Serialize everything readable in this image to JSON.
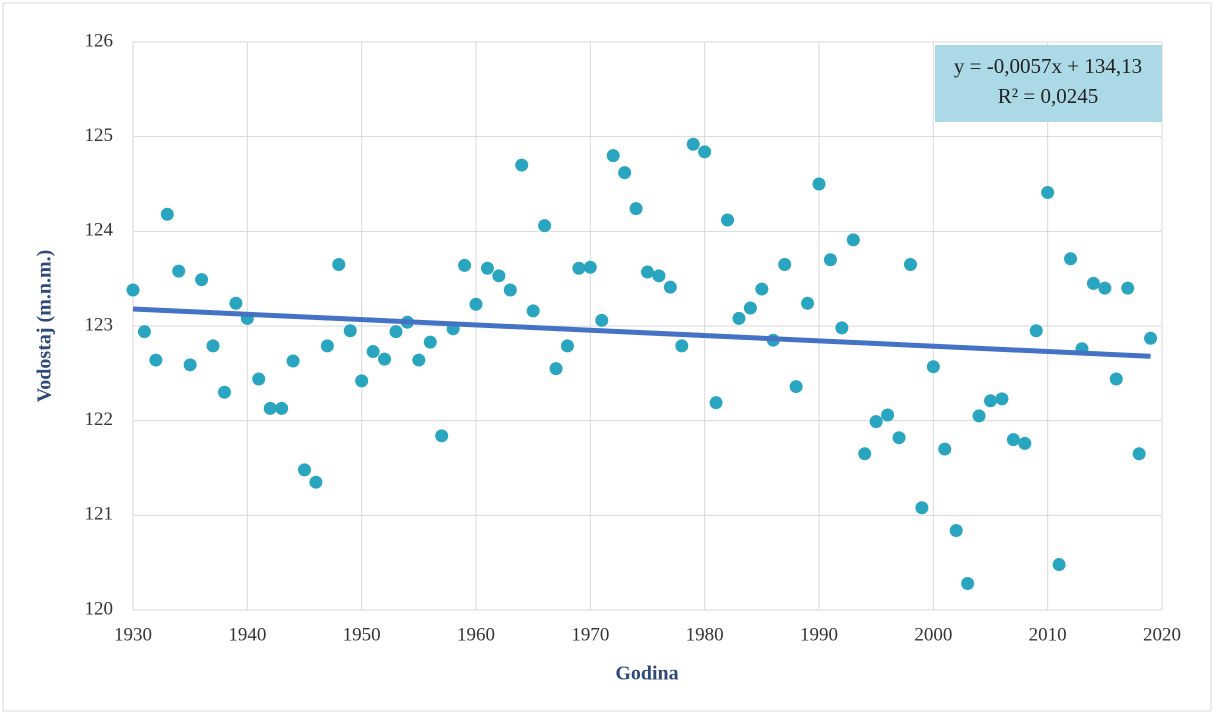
{
  "chart_data": {
    "type": "scatter",
    "x_label": "Godina",
    "y_label": "Vodostaj (m.n.m.)",
    "annotation": [
      "y = -0,0057x + 134,13",
      "R² = 0,0245"
    ],
    "color": "#2aa5c0",
    "grid": true,
    "x": [
      1930,
      1931,
      1932,
      1933,
      1934,
      1935,
      1936,
      1937,
      1938,
      1939,
      1940,
      1941,
      1942,
      1943,
      1944,
      1945,
      1946,
      1947,
      1948,
      1949,
      1950,
      1951,
      1952,
      1953,
      1954,
      1955,
      1956,
      1957,
      1958,
      1959,
      1960,
      1961,
      1962,
      1963,
      1964,
      1965,
      1966,
      1967,
      1968,
      1969,
      1970,
      1971,
      1972,
      1973,
      1974,
      1975,
      1976,
      1977,
      1978,
      1979,
      1980,
      1981,
      1982,
      1983,
      1984,
      1985,
      1986,
      1987,
      1988,
      1989,
      1990,
      1991,
      1992,
      1993,
      1994,
      1995,
      1996,
      1997,
      1998,
      1999,
      2000,
      2001,
      2002,
      2003,
      2004,
      2005,
      2006,
      2007,
      2008,
      2009,
      2010,
      2011,
      2012,
      2013,
      2014,
      2015,
      2016,
      2017,
      2018,
      2019
    ],
    "values": [
      123.38,
      122.94,
      122.64,
      124.18,
      123.58,
      122.59,
      123.49,
      122.79,
      122.3,
      123.24,
      123.08,
      122.44,
      122.13,
      122.13,
      122.63,
      121.48,
      121.35,
      122.79,
      123.65,
      122.95,
      122.42,
      122.73,
      122.65,
      122.94,
      123.04,
      122.64,
      122.83,
      121.84,
      122.97,
      123.64,
      123.23,
      123.61,
      123.53,
      123.38,
      124.7,
      123.16,
      124.06,
      122.55,
      122.79,
      123.61,
      123.62,
      123.06,
      124.8,
      124.62,
      124.24,
      123.57,
      123.53,
      123.41,
      122.79,
      124.92,
      124.84,
      122.19,
      124.12,
      123.08,
      123.19,
      123.39,
      122.85,
      123.65,
      122.36,
      123.24,
      124.5,
      123.7,
      122.98,
      123.91,
      121.65,
      121.99,
      122.06,
      121.82,
      123.65,
      121.08,
      122.57,
      121.7,
      120.84,
      120.28,
      122.05,
      122.21,
      122.23,
      121.8,
      121.76,
      122.95,
      124.41,
      120.48,
      123.71,
      122.76,
      123.45,
      123.4,
      122.44,
      123.4,
      121.65,
      122.87
    ],
    "trendline": {
      "x": [
        1930,
        2019
      ],
      "values": [
        123.18,
        122.68
      ],
      "color": "#4472c4"
    },
    "xlim": [
      1930,
      2020
    ],
    "xticks": [
      1930,
      1940,
      1950,
      1960,
      1970,
      1980,
      1990,
      2000,
      2010,
      2020
    ],
    "ylim": [
      120,
      126
    ],
    "yticks": [
      120,
      121,
      122,
      123,
      124,
      125,
      126
    ]
  }
}
